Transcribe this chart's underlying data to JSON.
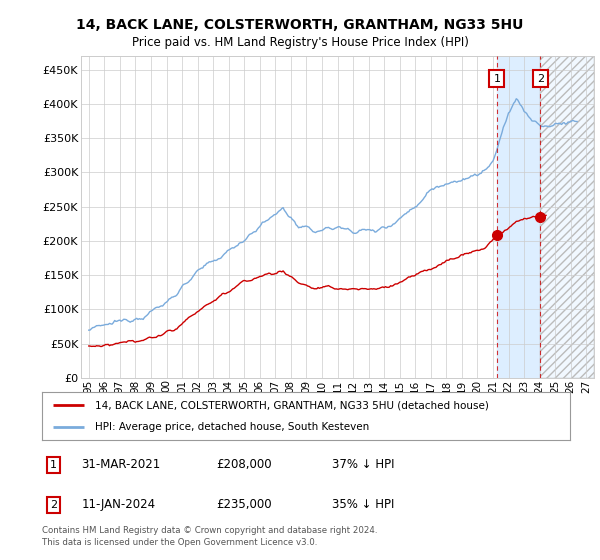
{
  "title": "14, BACK LANE, COLSTERWORTH, GRANTHAM, NG33 5HU",
  "subtitle": "Price paid vs. HM Land Registry's House Price Index (HPI)",
  "ylabel_vals": [
    0,
    50000,
    100000,
    150000,
    200000,
    250000,
    300000,
    350000,
    400000,
    450000
  ],
  "ylabel_labels": [
    "£0",
    "£50K",
    "£100K",
    "£150K",
    "£200K",
    "£250K",
    "£300K",
    "£350K",
    "£400K",
    "£450K"
  ],
  "ylim": [
    0,
    470000
  ],
  "xlim_start": 1994.5,
  "xlim_end": 2027.5,
  "sale1_x": 2021.25,
  "sale1_price": 208000,
  "sale2_x": 2024.04,
  "sale2_price": 235000,
  "legend_line1": "14, BACK LANE, COLSTERWORTH, GRANTHAM, NG33 5HU (detached house)",
  "legend_line2": "HPI: Average price, detached house, South Kesteven",
  "footer": "Contains HM Land Registry data © Crown copyright and database right 2024.\nThis data is licensed under the Open Government Licence v3.0.",
  "hpi_color": "#7aabdc",
  "price_color": "#cc0000",
  "shade_color": "#ddeeff",
  "hatch_color": "#bbbbbb",
  "bg_color": "#ffffff",
  "grid_color": "#cccccc",
  "box1_label": "1",
  "box2_label": "2",
  "ann1_date": "31-MAR-2021",
  "ann1_price": "£208,000",
  "ann1_hpi": "37% ↓ HPI",
  "ann2_date": "11-JAN-2024",
  "ann2_price": "£235,000",
  "ann2_hpi": "35% ↓ HPI"
}
